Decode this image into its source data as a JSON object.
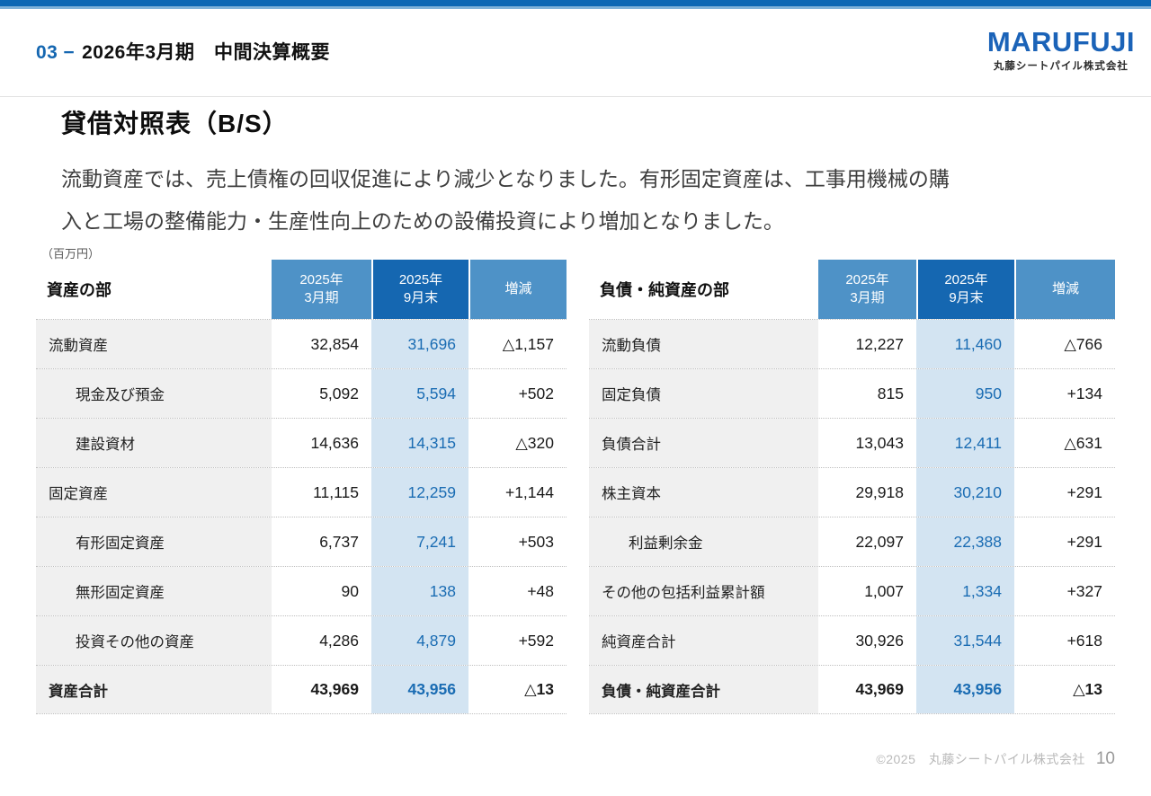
{
  "header": {
    "section_number": "03",
    "dash": "−",
    "title": "2026年3月期　中間決算概要",
    "logo_brand": "MARUFUJI",
    "logo_company": "丸藤シートパイル株式会社"
  },
  "slide": {
    "title": "貸借対照表（B/S）",
    "description_line1": "流動資産では、売上債権の回収促進により減少となりました。有形固定資産は、工事用機械の購",
    "description_line2": "入と工場の整備能力・生産性向上のための設備投資により増加となりました。",
    "unit_label": "（百万円）"
  },
  "columns": {
    "march_line1": "2025年",
    "march_line2": "3月期",
    "september_line1": "2025年",
    "september_line2": "9月末",
    "change_label": "増減"
  },
  "assets_table": {
    "title": "資産の部",
    "rows": [
      {
        "label": "流動資産",
        "march": "32,854",
        "september": "31,696",
        "change": "△1,157"
      },
      {
        "label": "現金及び預金",
        "march": "5,092",
        "september": "5,594",
        "change": "+502"
      },
      {
        "label": "建設資材",
        "march": "14,636",
        "september": "14,315",
        "change": "△320"
      },
      {
        "label": "固定資産",
        "march": "11,115",
        "september": "12,259",
        "change": "+1,144"
      },
      {
        "label": "有形固定資産",
        "march": "6,737",
        "september": "7,241",
        "change": "+503"
      },
      {
        "label": "無形固定資産",
        "march": "90",
        "september": "138",
        "change": "+48"
      },
      {
        "label": "投資その他の資産",
        "march": "4,286",
        "september": "4,879",
        "change": "+592"
      },
      {
        "label": "資産合計",
        "march": "43,969",
        "september": "43,956",
        "change": "△13"
      }
    ]
  },
  "liabilities_table": {
    "title": "負債・純資産の部",
    "rows": [
      {
        "label": "流動負債",
        "march": "12,227",
        "september": "11,460",
        "change": "△766"
      },
      {
        "label": "固定負債",
        "march": "815",
        "september": "950",
        "change": "+134"
      },
      {
        "label": "負債合計",
        "march": "13,043",
        "september": "12,411",
        "change": "△631"
      },
      {
        "label": "株主資本",
        "march": "29,918",
        "september": "30,210",
        "change": "+291"
      },
      {
        "label": "利益剰余金",
        "march": "22,097",
        "september": "22,388",
        "change": "+291"
      },
      {
        "label": "その他の包括利益累計額",
        "march": "1,007",
        "september": "1,334",
        "change": "+327"
      },
      {
        "label": "純資産合計",
        "march": "30,926",
        "september": "31,544",
        "change": "+618"
      },
      {
        "label": "負債・純資産合計",
        "march": "43,969",
        "september": "43,956",
        "change": "△13"
      }
    ]
  },
  "footer": {
    "copyright": "©2025　丸藤シートパイル株式会社",
    "page_number": "10"
  },
  "colors": {
    "accent_blue": "#0c67b4",
    "accent_blue_light": "#7fb2d9",
    "header_light_blue": "#4e92c7",
    "header_dark_blue": "#1567b1",
    "highlight_col_bg": "#d3e4f2",
    "value_blue": "#1a6cb3",
    "label_col_bg": "#f0f0f0"
  }
}
